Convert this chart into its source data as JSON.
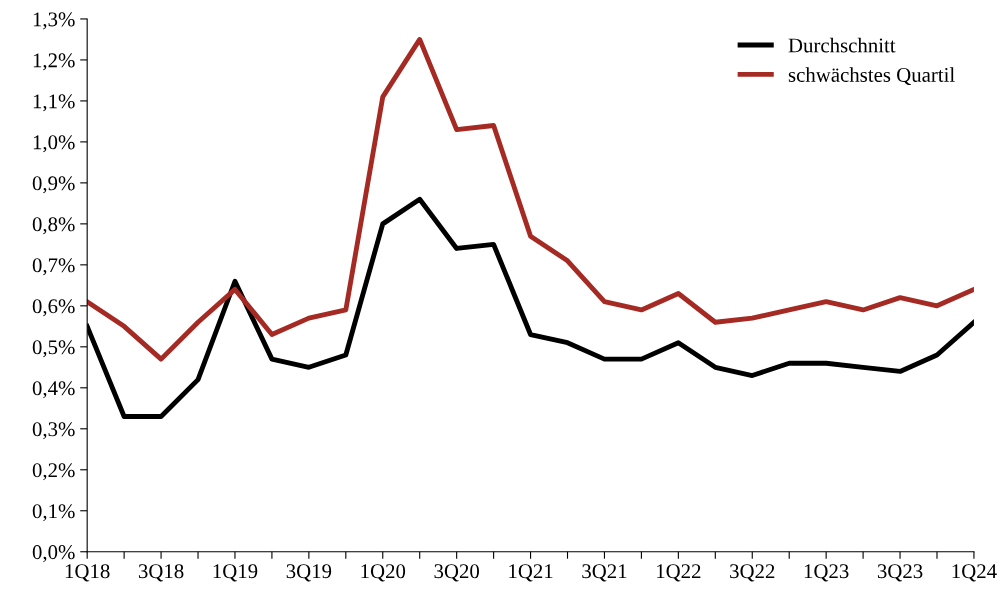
{
  "chart_data": {
    "type": "line",
    "categories": [
      "1Q18",
      null,
      "3Q18",
      null,
      "1Q19",
      null,
      "3Q19",
      null,
      "1Q20",
      null,
      "3Q20",
      null,
      "1Q21",
      null,
      "3Q21",
      null,
      "1Q22",
      null,
      "3Q22",
      null,
      "1Q23",
      null,
      "3Q23",
      null,
      "1Q24"
    ],
    "series": [
      {
        "name": "Durchschnitt",
        "color": "#000000",
        "values": [
          0.55,
          0.33,
          0.33,
          0.42,
          0.66,
          0.47,
          0.45,
          0.48,
          0.8,
          0.86,
          0.74,
          0.75,
          0.53,
          0.51,
          0.47,
          0.47,
          0.51,
          0.45,
          0.43,
          0.46,
          0.46,
          0.45,
          0.44,
          0.48,
          0.56
        ]
      },
      {
        "name": "schwächstes Quartil",
        "color": "#a52a24",
        "values": [
          0.61,
          0.55,
          0.47,
          0.56,
          0.64,
          0.53,
          0.57,
          0.59,
          1.11,
          1.25,
          1.03,
          1.04,
          0.77,
          0.71,
          0.61,
          0.59,
          0.63,
          0.56,
          0.57,
          0.59,
          0.61,
          0.59,
          0.62,
          0.6,
          0.64
        ]
      }
    ],
    "ylim": [
      0,
      1.3
    ],
    "yticks": [
      {
        "value": 0,
        "label": "0,0%"
      },
      {
        "value": 0.1,
        "label": "0,1%"
      },
      {
        "value": 0.2,
        "label": "0,2%"
      },
      {
        "value": 0.3,
        "label": "0,3%"
      },
      {
        "value": 0.4,
        "label": "0,4%"
      },
      {
        "value": 0.5,
        "label": "0,5%"
      },
      {
        "value": 0.6,
        "label": "0,6%"
      },
      {
        "value": 0.7,
        "label": "0,7%"
      },
      {
        "value": 0.8,
        "label": "0,8%"
      },
      {
        "value": 0.9,
        "label": "0,9%"
      },
      {
        "value": 1.0,
        "label": "1,0%"
      },
      {
        "value": 1.1,
        "label": "1,1%"
      },
      {
        "value": 1.2,
        "label": "1,2%"
      },
      {
        "value": 1.3,
        "label": "1,3%"
      }
    ],
    "grid": false,
    "legend": "top right",
    "marker": "none",
    "line_style": "solid"
  }
}
